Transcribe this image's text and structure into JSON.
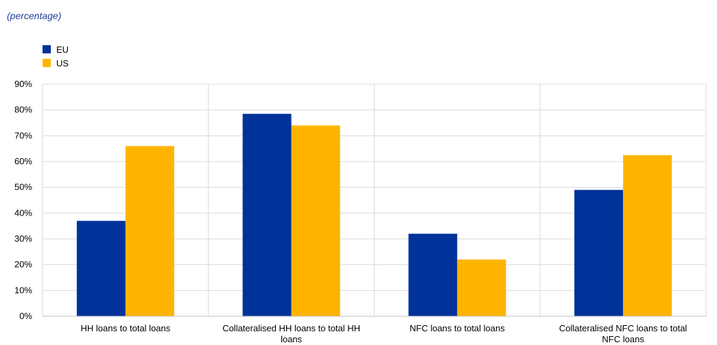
{
  "chart_data": {
    "type": "bar",
    "subtitle": "(percentage)",
    "categories": [
      [
        "HH loans to total loans"
      ],
      [
        "Collateralised HH loans to total HH",
        "loans"
      ],
      [
        "NFC loans to total loans"
      ],
      [
        "Collateralised NFC loans to total",
        "NFC loans"
      ]
    ],
    "series": [
      {
        "name": "EU",
        "color": "#003299",
        "values": [
          37,
          78.5,
          32,
          49
        ]
      },
      {
        "name": "US",
        "color": "#ffb400",
        "values": [
          66,
          74,
          22,
          62.5
        ]
      }
    ],
    "y_ticks": [
      "0%",
      "10%",
      "20%",
      "30%",
      "40%",
      "50%",
      "60%",
      "70%",
      "80%",
      "90%"
    ],
    "ylim": [
      0,
      90
    ],
    "grid": true,
    "legend_position": "top-left"
  }
}
